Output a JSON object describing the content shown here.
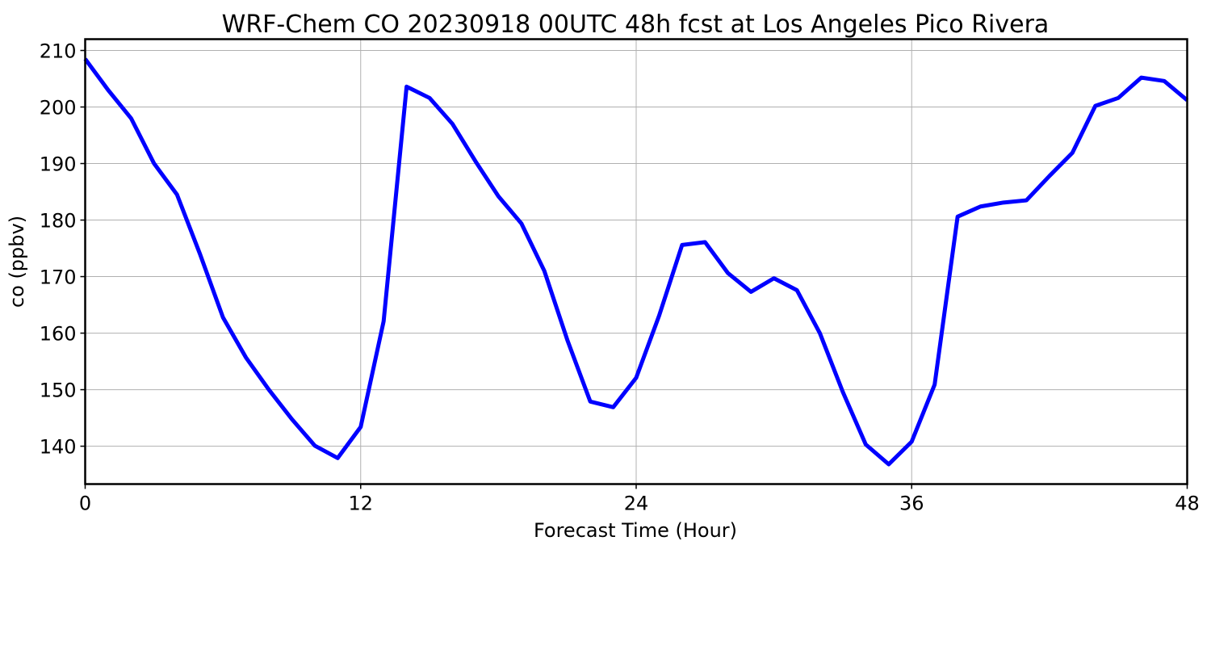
{
  "chart_data": {
    "type": "line",
    "title": "WRF-Chem CO  20230918 00UTC 48h fcst at Los Angeles Pico Rivera",
    "xlabel": "Forecast Time (Hour)",
    "ylabel": "co  (ppbv)",
    "xlim": [
      0,
      48
    ],
    "ylim": [
      133.3,
      212.0
    ],
    "xticks": [
      0,
      12,
      24,
      36,
      48
    ],
    "yticks": [
      140,
      150,
      160,
      170,
      180,
      190,
      200,
      210
    ],
    "grid": true,
    "series": [
      {
        "color": "#0000ff",
        "x": [
          0,
          1,
          2,
          3,
          4,
          5,
          6,
          7,
          8,
          9,
          10,
          11,
          12,
          13,
          14,
          15,
          16,
          17,
          18,
          19,
          20,
          21,
          22,
          23,
          24,
          25,
          26,
          27,
          28,
          29,
          30,
          31,
          32,
          33,
          34,
          35,
          36,
          37,
          38,
          39,
          40,
          41,
          42,
          43,
          44,
          45,
          46,
          47,
          48
        ],
        "values": [
          208.5,
          203.0,
          198.0,
          190.0,
          184.5,
          174.0,
          162.8,
          155.7,
          150.0,
          144.8,
          140.1,
          137.9,
          143.4,
          162.1,
          203.6,
          201.6,
          197.0,
          190.4,
          184.2,
          179.4,
          171.0,
          158.8,
          147.9,
          146.9,
          152.1,
          163.1,
          175.6,
          176.1,
          170.6,
          167.3,
          169.7,
          167.6,
          160.0,
          149.6,
          140.3,
          136.8,
          140.8,
          150.9,
          180.6,
          182.4,
          183.1,
          183.5,
          187.8,
          191.9,
          200.2,
          201.6,
          205.2,
          204.6,
          201.2
        ]
      }
    ]
  }
}
